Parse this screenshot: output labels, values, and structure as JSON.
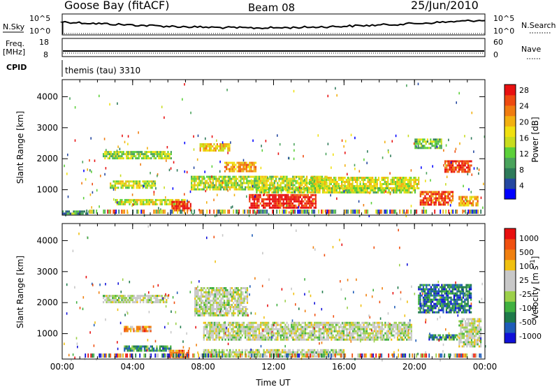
{
  "header": {
    "title": "Goose Bay (fitACF)",
    "beam": "Beam 08",
    "date": "25/Jun/2010"
  },
  "sky_panel": {
    "left_label": "N.Sky",
    "left_ticks": [
      "10^5",
      "10^0"
    ],
    "right_label": "N.Search",
    "right_ticks": [
      "10^5",
      "10^0"
    ]
  },
  "freq_panel": {
    "left_label_1": "Freq.",
    "left_label_2": "[MHz]",
    "left_ticks": [
      "18",
      "8"
    ],
    "right_label": "Nave",
    "right_ticks": [
      "60",
      "0"
    ]
  },
  "cpid": {
    "label": "CPID",
    "value": "themis (tau) 3310"
  },
  "colors": {
    "power_scale": [
      "#0000ff",
      "#2548a0",
      "#2e7a5a",
      "#4aa35c",
      "#5cd03a",
      "#c8dc1e",
      "#f0e010",
      "#f2b010",
      "#f07c10",
      "#ee4a10",
      "#e81010"
    ],
    "velocity_scale": [
      "#1010d8",
      "#1e5cb8",
      "#1e7a4a",
      "#40b040",
      "#9cd04a",
      "#c8c8c8",
      "#c8c8c8",
      "#f0c010",
      "#f08010",
      "#f05010",
      "#e81010"
    ],
    "ground": "#c0c0c0"
  },
  "chart_data": [
    {
      "type": "heatmap",
      "name": "power",
      "ylabel": "Slant Range [km]",
      "xlim": [
        0,
        24
      ],
      "ylim": [
        180,
        4550
      ],
      "yticks": [
        1000,
        2000,
        3000,
        4000
      ],
      "colorbar_label": "Power [dB]",
      "colorbar_ticks": [
        "4",
        "8",
        "12",
        "16",
        "20",
        "24",
        "28"
      ],
      "features": [
        {
          "x": [
            0.0,
            1.5
          ],
          "y": [
            200,
            330
          ],
          "level": 0.3
        },
        {
          "x": [
            2.3,
            6.2
          ],
          "y": [
            2000,
            2250
          ],
          "level": 0.45
        },
        {
          "x": [
            2.7,
            5.3
          ],
          "y": [
            1050,
            1300
          ],
          "level": 0.5
        },
        {
          "x": [
            3.0,
            7.0
          ],
          "y": [
            520,
            700
          ],
          "level": 0.55
        },
        {
          "x": [
            6.2,
            7.3
          ],
          "y": [
            360,
            640
          ],
          "level": 0.95
        },
        {
          "x": [
            7.8,
            9.5
          ],
          "y": [
            2250,
            2500
          ],
          "level": 0.65
        },
        {
          "x": [
            9.2,
            11.0
          ],
          "y": [
            1600,
            1900
          ],
          "level": 0.7
        },
        {
          "x": [
            7.3,
            15.0
          ],
          "y": [
            1000,
            1450
          ],
          "level": 0.5
        },
        {
          "x": [
            10.6,
            14.4
          ],
          "y": [
            450,
            860
          ],
          "level": 0.95
        },
        {
          "x": [
            14.0,
            20.2
          ],
          "y": [
            1080,
            1420
          ],
          "level": 0.55
        },
        {
          "x": [
            11.0,
            20.0
          ],
          "y": [
            880,
            1080
          ],
          "level": 0.5
        },
        {
          "x": [
            20.3,
            22.2
          ],
          "y": [
            540,
            960
          ],
          "level": 0.85
        },
        {
          "x": [
            20.0,
            21.5
          ],
          "y": [
            2350,
            2650
          ],
          "level": 0.4
        },
        {
          "x": [
            21.7,
            23.2
          ],
          "y": [
            1600,
            1950
          ],
          "level": 0.9
        },
        {
          "x": [
            22.5,
            23.6
          ],
          "y": [
            520,
            800
          ],
          "level": 0.7
        }
      ]
    },
    {
      "type": "heatmap",
      "name": "velocity",
      "ylabel": "Slant Range [km]",
      "xlabel": "Time UT",
      "xlim": [
        0,
        24
      ],
      "ylim": [
        180,
        4550
      ],
      "yticks": [
        1000,
        2000,
        3000,
        4000
      ],
      "xticks": [
        "00:00",
        "04:00",
        "08:00",
        "12:00",
        "16:00",
        "20:00",
        "00:00"
      ],
      "colorbar_label": "Velocity [m s^-1]",
      "colorbar_ticks": [
        "1000",
        "500",
        "100",
        "25",
        "-25",
        "-100",
        "-500",
        "-1000"
      ],
      "features": [
        {
          "x": [
            2.3,
            6.0
          ],
          "y": [
            2000,
            2250
          ],
          "level": 0.5
        },
        {
          "x": [
            3.5,
            5.0
          ],
          "y": [
            1050,
            1250
          ],
          "level": 0.75
        },
        {
          "x": [
            3.5,
            6.2
          ],
          "y": [
            480,
            620
          ],
          "level": 0.25
        },
        {
          "x": [
            6.0,
            7.2
          ],
          "y": [
            250,
            480
          ],
          "level": 0.8
        },
        {
          "x": [
            8.0,
            19.8
          ],
          "y": [
            800,
            1380
          ],
          "level": 0.5
        },
        {
          "x": [
            7.5,
            10.5
          ],
          "y": [
            1600,
            2500
          ],
          "level": 0.5
        },
        {
          "x": [
            8.0,
            16.0
          ],
          "y": [
            250,
            500
          ],
          "level": 0.5
        },
        {
          "x": [
            20.2,
            23.2
          ],
          "y": [
            1700,
            2600
          ],
          "level": 0.2
        },
        {
          "x": [
            20.8,
            22.4
          ],
          "y": [
            780,
            980
          ],
          "level": 0.25
        },
        {
          "x": [
            22.5,
            23.8
          ],
          "y": [
            600,
            1500
          ],
          "level": 0.5
        }
      ]
    }
  ]
}
